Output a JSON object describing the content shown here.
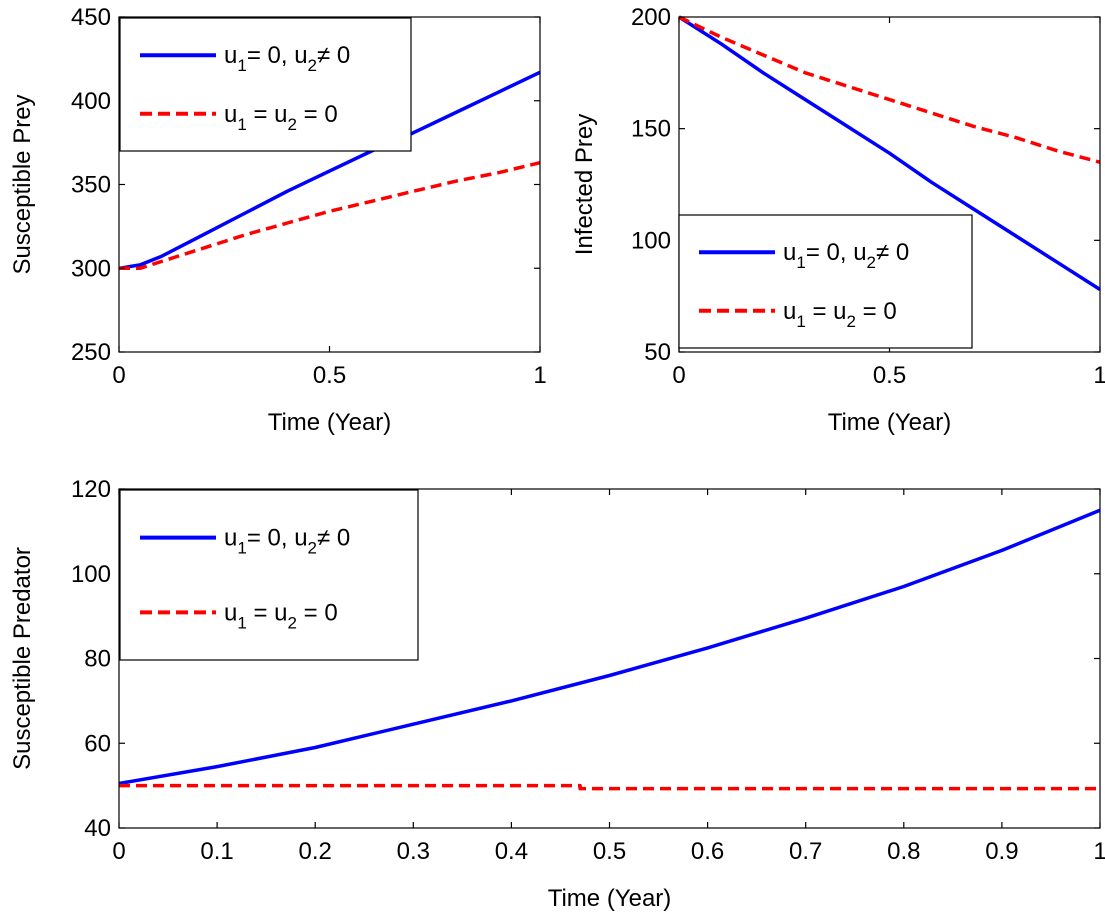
{
  "chart_data": [
    {
      "type": "line",
      "xlabel": "Time (Year)",
      "ylabel": "Susceptible  Prey",
      "xlim": [
        0,
        1
      ],
      "ylim": [
        250,
        450
      ],
      "xticks": [
        0,
        0.5,
        1
      ],
      "xtick_labels": [
        "0",
        "0.5",
        "1"
      ],
      "yticks": [
        250,
        300,
        350,
        400,
        450
      ],
      "ytick_labels": [
        "250",
        "300",
        "350",
        "400",
        "450"
      ],
      "grid": false,
      "legend_position": "top-left",
      "series": [
        {
          "color": "#0000ff",
          "style": "solid",
          "x": [
            0,
            0.05,
            0.1,
            0.2,
            0.3,
            0.4,
            0.5,
            0.6,
            0.7,
            0.8,
            0.9,
            1.0
          ],
          "y": [
            300,
            302,
            307,
            320,
            333,
            346,
            358,
            370,
            381,
            393,
            405,
            417
          ]
        },
        {
          "color": "#ff0000",
          "style": "dashed",
          "x": [
            0,
            0.05,
            0.1,
            0.2,
            0.3,
            0.4,
            0.5,
            0.6,
            0.7,
            0.8,
            0.9,
            1.0
          ],
          "y": [
            300,
            300,
            304,
            312,
            320,
            327,
            334,
            340,
            346,
            352,
            357,
            363
          ]
        }
      ]
    },
    {
      "type": "line",
      "xlabel": "Time (Year)",
      "ylabel": "Infected  Prey",
      "xlim": [
        0,
        1
      ],
      "ylim": [
        50,
        200
      ],
      "xticks": [
        0,
        0.5,
        1
      ],
      "xtick_labels": [
        "0",
        "0.5",
        "1"
      ],
      "yticks": [
        50,
        100,
        150,
        200
      ],
      "ytick_labels": [
        "50",
        "100",
        "150",
        "200"
      ],
      "grid": false,
      "legend_position": "bottom-left",
      "series": [
        {
          "color": "#0000ff",
          "style": "solid",
          "x": [
            0,
            0.1,
            0.2,
            0.3,
            0.4,
            0.5,
            0.6,
            0.7,
            0.8,
            0.9,
            1.0
          ],
          "y": [
            200,
            188,
            175,
            163,
            151,
            139,
            126,
            114,
            102,
            90,
            78
          ]
        },
        {
          "color": "#ff0000",
          "style": "dashed",
          "x": [
            0,
            0.1,
            0.2,
            0.3,
            0.4,
            0.5,
            0.6,
            0.7,
            0.8,
            0.9,
            1.0
          ],
          "y": [
            200,
            191,
            183,
            175,
            169,
            163,
            157,
            151,
            146,
            140,
            135
          ]
        }
      ]
    },
    {
      "type": "line",
      "xlabel": "Time (Year)",
      "ylabel": "Susceptible  Predator",
      "xlim": [
        0,
        1
      ],
      "ylim": [
        40,
        120
      ],
      "xticks": [
        0,
        0.1,
        0.2,
        0.3,
        0.4,
        0.5,
        0.6,
        0.7,
        0.8,
        0.9,
        1
      ],
      "xtick_labels": [
        "0",
        "0.1",
        "0.2",
        "0.3",
        "0.4",
        "0.5",
        "0.6",
        "0.7",
        "0.8",
        "0.9",
        "1"
      ],
      "yticks": [
        40,
        60,
        80,
        100,
        120
      ],
      "ytick_labels": [
        "40",
        "60",
        "80",
        "100",
        "120"
      ],
      "grid": false,
      "legend_position": "top-left",
      "series": [
        {
          "color": "#0000ff",
          "style": "solid",
          "x": [
            0,
            0.1,
            0.2,
            0.3,
            0.4,
            0.5,
            0.6,
            0.7,
            0.8,
            0.9,
            1.0
          ],
          "y": [
            50.5,
            54.5,
            59,
            64.5,
            70,
            76,
            82.5,
            89.5,
            97,
            105.5,
            115
          ]
        },
        {
          "color": "#ff0000",
          "style": "dashed",
          "x": [
            0,
            0.1,
            0.2,
            0.3,
            0.4,
            0.47,
            0.47,
            0.5,
            0.6,
            0.7,
            0.8,
            0.9,
            1.0
          ],
          "y": [
            50,
            50,
            50,
            50,
            50,
            50,
            49.3,
            49.3,
            49.3,
            49.3,
            49.3,
            49.3,
            49.3
          ]
        }
      ]
    }
  ],
  "legend": {
    "entry1": {
      "u1": "u",
      "u1_sub": "1",
      "mid": "= 0, u",
      "u2_sub": "2",
      "tail": "≠ 0"
    },
    "entry2": {
      "u1": "u",
      "u1_sub": "1",
      "mid": " = u",
      "u2_sub": "2",
      "tail": " = 0"
    }
  }
}
